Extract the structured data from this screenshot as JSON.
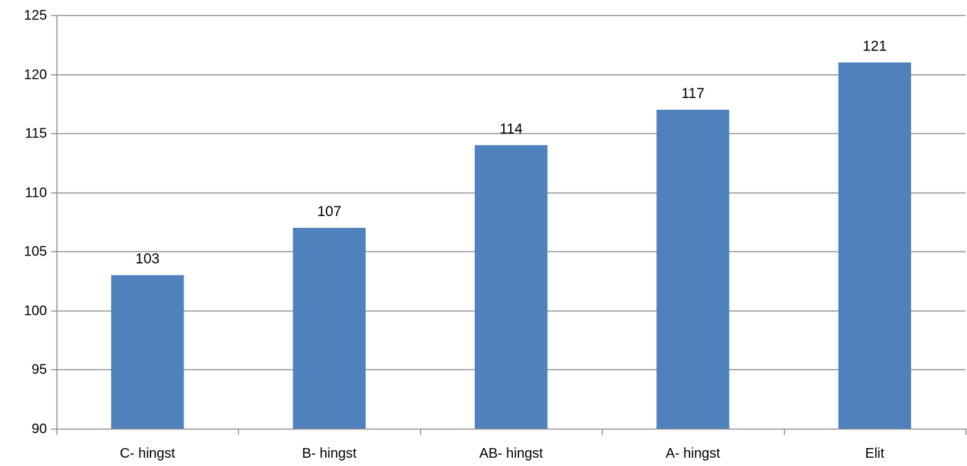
{
  "chart_data": {
    "type": "bar",
    "categories": [
      "C- hingst",
      "B- hingst",
      "AB- hingst",
      "A- hingst",
      "Elit"
    ],
    "values": [
      103,
      107,
      114,
      117,
      121
    ],
    "data_labels": [
      "103",
      "107",
      "114",
      "117",
      "121"
    ],
    "y_ticks": [
      90,
      95,
      100,
      105,
      110,
      115,
      120,
      125
    ],
    "y_tick_labels": [
      "90",
      "95",
      "100",
      "105",
      "110",
      "115",
      "120",
      "125"
    ],
    "ylim": [
      90,
      125
    ],
    "grid": "horizontal",
    "legend": "none",
    "colors": {
      "bar": "#4f81bd",
      "gridline": "#8c8c8c",
      "axis": "#8c8c8c",
      "text": "#000000"
    }
  }
}
